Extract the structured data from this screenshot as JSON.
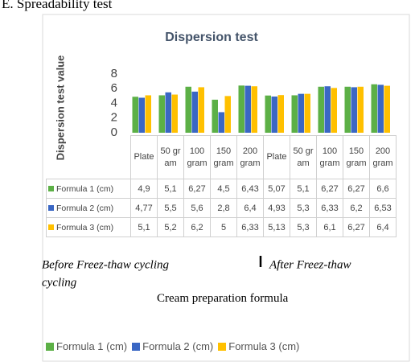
{
  "heading": "E. Spreadability test",
  "chart_data": {
    "type": "bar",
    "title": "Dispersion test",
    "y_label": "Dispersion test value",
    "x_label": "Cream preparation formula",
    "categories": [
      "Plate",
      "50 gram",
      "100 gram",
      "150 gram",
      "200 gram",
      "Plate",
      "50 gram",
      "100 gram",
      "150 gram",
      "200 gram"
    ],
    "series": [
      {
        "name": "Formula 1 (cm)",
        "color": "#5cb046",
        "values": [
          4.9,
          5.1,
          6.27,
          4.5,
          6.43,
          5.07,
          5.1,
          6.27,
          6.27,
          6.6
        ],
        "value_labels": [
          "4,9",
          "5,1",
          "6,27",
          "4,5",
          "6,43",
          "5,07",
          "5,1",
          "6,27",
          "6,27",
          "6,6"
        ]
      },
      {
        "name": "Formula  2 (cm)",
        "color": "#3a67c4",
        "values": [
          4.77,
          5.5,
          5.6,
          2.8,
          6.4,
          4.93,
          5.3,
          6.33,
          6.2,
          6.53
        ],
        "value_labels": [
          "4,77",
          "5,5",
          "5,6",
          "2,8",
          "6,4",
          "4,93",
          "5,3",
          "6,33",
          "6,2",
          "6,53"
        ]
      },
      {
        "name": "Formula 3 (cm)",
        "color": "#ffc000",
        "values": [
          5.1,
          5.2,
          6.2,
          5,
          6.33,
          5.13,
          5.3,
          6.1,
          6.27,
          6.4
        ],
        "value_labels": [
          "5,1",
          "5,2",
          "6,2",
          "5",
          "6,33",
          "5,13",
          "5,3",
          "6,1",
          "6,27",
          "6,4"
        ]
      }
    ],
    "ylim": [
      0,
      8
    ],
    "yticks": [
      0,
      2,
      4,
      6,
      8
    ],
    "grid": false,
    "legend": "bottom",
    "annotations": [
      "Before Freez-thaw cycling",
      "cycling",
      "After Freez-thaw"
    ]
  }
}
